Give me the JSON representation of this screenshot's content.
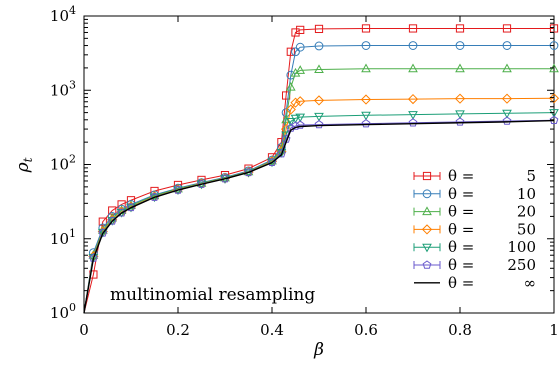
{
  "chart_data": {
    "type": "line",
    "xlabel": "β",
    "ylabel_main": "ρ",
    "ylabel_sub": "t",
    "xlim": [
      0,
      1
    ],
    "ylim": [
      1,
      10000
    ],
    "yscale": "log",
    "grid": false,
    "legend_position": "bottom-right",
    "annotation": "multinomial resampling",
    "x_ticks": [
      {
        "value": 0,
        "label": "0"
      },
      {
        "value": 0.2,
        "label": "0.2"
      },
      {
        "value": 0.4,
        "label": "0.4"
      },
      {
        "value": 0.6,
        "label": "0.6"
      },
      {
        "value": 0.8,
        "label": "0.8"
      },
      {
        "value": 1,
        "label": "1"
      }
    ],
    "y_ticks": [
      {
        "value": 1,
        "base": "10",
        "exp": "0"
      },
      {
        "value": 10,
        "base": "10",
        "exp": "1"
      },
      {
        "value": 100,
        "base": "10",
        "exp": "2"
      },
      {
        "value": 1000,
        "base": "10",
        "exp": "3"
      },
      {
        "value": 10000,
        "base": "10",
        "exp": "4"
      }
    ],
    "series": [
      {
        "name_theta": "θ =",
        "name_value": "5",
        "color": "#e41a1c",
        "marker": "square",
        "x": [
          0,
          0.02,
          0.04,
          0.06,
          0.08,
          0.1,
          0.15,
          0.2,
          0.25,
          0.3,
          0.35,
          0.4,
          0.42,
          0.43,
          0.44,
          0.45,
          0.46,
          0.5,
          0.6,
          0.7,
          0.8,
          0.9,
          1.0
        ],
        "y": [
          1,
          3.3,
          17,
          24,
          29,
          33,
          44,
          53,
          62,
          72,
          88,
          125,
          200,
          850,
          3300,
          6000,
          6500,
          6700,
          6800,
          6800,
          6800,
          6800,
          6800
        ]
      },
      {
        "name_theta": "θ =",
        "name_value": "10",
        "color": "#377eb8",
        "marker": "circle",
        "x": [
          0,
          0.02,
          0.04,
          0.06,
          0.08,
          0.1,
          0.15,
          0.2,
          0.25,
          0.3,
          0.35,
          0.4,
          0.42,
          0.43,
          0.44,
          0.45,
          0.46,
          0.5,
          0.6,
          0.7,
          0.8,
          0.9,
          1.0
        ],
        "y": [
          1,
          6.5,
          14,
          20,
          25,
          29,
          39,
          48,
          57,
          67,
          82,
          115,
          170,
          500,
          1600,
          3300,
          3800,
          3950,
          4000,
          4000,
          4000,
          4000,
          4000
        ]
      },
      {
        "name_theta": "θ =",
        "name_value": "20",
        "color": "#4daf4a",
        "marker": "triangle-up",
        "x": [
          0,
          0.02,
          0.04,
          0.06,
          0.08,
          0.1,
          0.15,
          0.2,
          0.25,
          0.3,
          0.35,
          0.4,
          0.42,
          0.43,
          0.44,
          0.45,
          0.46,
          0.5,
          0.6,
          0.7,
          0.8,
          0.9,
          1.0
        ],
        "y": [
          1,
          6,
          13,
          19,
          24,
          28,
          38,
          47,
          56,
          66,
          80,
          112,
          160,
          400,
          1100,
          1700,
          1850,
          1900,
          1950,
          1950,
          1950,
          1950,
          1950
        ]
      },
      {
        "name_theta": "θ =",
        "name_value": "50",
        "color": "#ff7f00",
        "marker": "diamond",
        "x": [
          0,
          0.02,
          0.04,
          0.06,
          0.08,
          0.1,
          0.15,
          0.2,
          0.25,
          0.3,
          0.35,
          0.4,
          0.42,
          0.43,
          0.44,
          0.45,
          0.46,
          0.5,
          0.6,
          0.7,
          0.8,
          0.9,
          1.0
        ],
        "y": [
          1,
          5.8,
          12.5,
          18,
          23,
          27,
          37,
          46,
          55,
          65,
          79,
          110,
          150,
          300,
          550,
          680,
          710,
          730,
          750,
          760,
          770,
          770,
          780
        ]
      },
      {
        "name_theta": "θ =",
        "name_value": "100",
        "color": "#1b9e77",
        "marker": "triangle-down",
        "x": [
          0,
          0.02,
          0.04,
          0.06,
          0.08,
          0.1,
          0.15,
          0.2,
          0.25,
          0.3,
          0.35,
          0.4,
          0.42,
          0.43,
          0.44,
          0.45,
          0.46,
          0.5,
          0.6,
          0.7,
          0.8,
          0.9,
          1.0
        ],
        "y": [
          1,
          5.6,
          12.2,
          17.6,
          22.6,
          26.6,
          36.6,
          45.6,
          54.6,
          64.6,
          78.6,
          108,
          145,
          250,
          380,
          420,
          435,
          445,
          460,
          470,
          480,
          490,
          500
        ]
      },
      {
        "name_theta": "θ =",
        "name_value": "250",
        "color": "#6a5acd",
        "marker": "pentagon",
        "x": [
          0,
          0.02,
          0.04,
          0.06,
          0.08,
          0.1,
          0.15,
          0.2,
          0.25,
          0.3,
          0.35,
          0.4,
          0.42,
          0.43,
          0.44,
          0.45,
          0.46,
          0.5,
          0.6,
          0.7,
          0.8,
          0.9,
          1.0
        ],
        "y": [
          1,
          5.5,
          12,
          17.4,
          22.4,
          26.4,
          36.4,
          45.4,
          54.4,
          64.4,
          78.4,
          107,
          140,
          220,
          310,
          330,
          340,
          345,
          355,
          365,
          375,
          385,
          395
        ]
      },
      {
        "name_theta": "θ =",
        "name_value": "∞",
        "color": "#000000",
        "marker": "none",
        "x": [
          0,
          0.02,
          0.04,
          0.06,
          0.08,
          0.1,
          0.15,
          0.2,
          0.25,
          0.3,
          0.35,
          0.4,
          0.42,
          0.43,
          0.44,
          0.45,
          0.46,
          0.5,
          0.6,
          0.7,
          0.8,
          0.9,
          1.0
        ],
        "y": [
          1,
          5.4,
          11.8,
          17.2,
          22.2,
          26.2,
          36.2,
          45.2,
          54.2,
          64.2,
          78.2,
          106,
          135,
          200,
          290,
          315,
          325,
          335,
          345,
          355,
          365,
          375,
          390
        ]
      }
    ]
  }
}
